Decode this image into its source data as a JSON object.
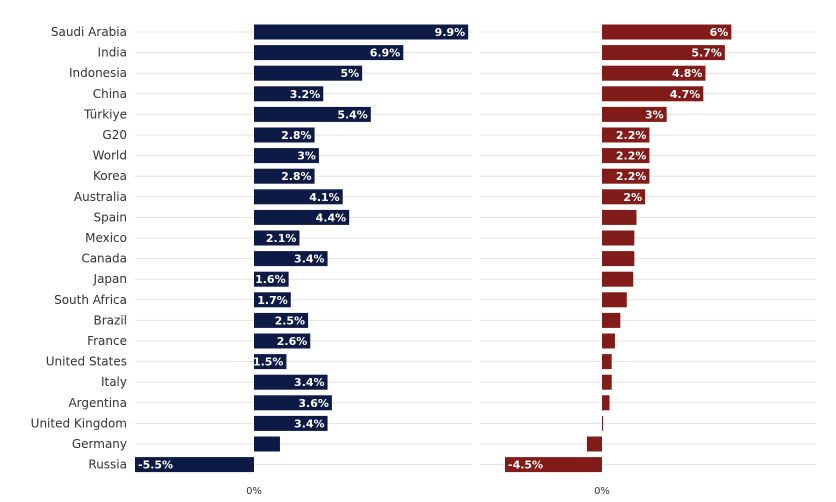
{
  "chart_data": [
    {
      "type": "bar",
      "orientation": "horizontal",
      "color": "#0c1a45",
      "categories": [
        "Saudi Arabia",
        "India",
        "Indonesia",
        "China",
        "Türkiye",
        "G20",
        "World",
        "Korea",
        "Australia",
        "Spain",
        "Mexico",
        "Canada",
        "Japan",
        "South Africa",
        "Brazil",
        "France",
        "United States",
        "Italy",
        "Argentina",
        "United Kingdom",
        "Germany",
        "Russia"
      ],
      "values": [
        9.9,
        6.9,
        5,
        3.2,
        5.4,
        2.8,
        3,
        2.8,
        4.1,
        4.4,
        2.1,
        3.4,
        1.6,
        1.7,
        2.5,
        2.6,
        1.5,
        3.4,
        3.6,
        3.4,
        1.2,
        -5.5
      ],
      "labels": [
        "9.9%",
        "6.9%",
        "5%",
        "3.2%",
        "5.4%",
        "2.8%",
        "3%",
        "2.8%",
        "4.1%",
        "4.4%",
        "2.1%",
        "3.4%",
        "1.6%",
        "1.7%",
        "2.5%",
        "2.6%",
        "1.5%",
        "3.4%",
        "3.6%",
        "3.4%",
        "",
        "-5.5%"
      ],
      "xlim": [
        -5.5,
        10.0
      ],
      "zero_tick_label": "0%",
      "grid": true
    },
    {
      "type": "bar",
      "orientation": "horizontal",
      "color": "#821c1a",
      "categories": [
        "Saudi Arabia",
        "India",
        "Indonesia",
        "China",
        "Türkiye",
        "G20",
        "World",
        "Korea",
        "Australia",
        "Spain",
        "Mexico",
        "Canada",
        "Japan",
        "South Africa",
        "Brazil",
        "France",
        "United States",
        "Italy",
        "Argentina",
        "United Kingdom",
        "Germany",
        "Russia"
      ],
      "values": [
        6,
        5.7,
        4.8,
        4.7,
        3,
        2.2,
        2.2,
        2.2,
        2,
        1.6,
        1.5,
        1.5,
        1.45,
        1.15,
        0.85,
        0.6,
        0.45,
        0.45,
        0.35,
        0.05,
        -0.7,
        -4.5
      ],
      "labels": [
        "6%",
        "5.7%",
        "4.8%",
        "4.7%",
        "3%",
        "2.2%",
        "2.2%",
        "2.2%",
        "2%",
        "",
        "",
        "",
        "",
        "",
        "",
        "",
        "",
        "",
        "",
        "",
        "",
        "-4.5%"
      ],
      "xlim": [
        -4.5,
        10.0
      ],
      "zero_tick_label": "0%",
      "grid": true
    }
  ]
}
